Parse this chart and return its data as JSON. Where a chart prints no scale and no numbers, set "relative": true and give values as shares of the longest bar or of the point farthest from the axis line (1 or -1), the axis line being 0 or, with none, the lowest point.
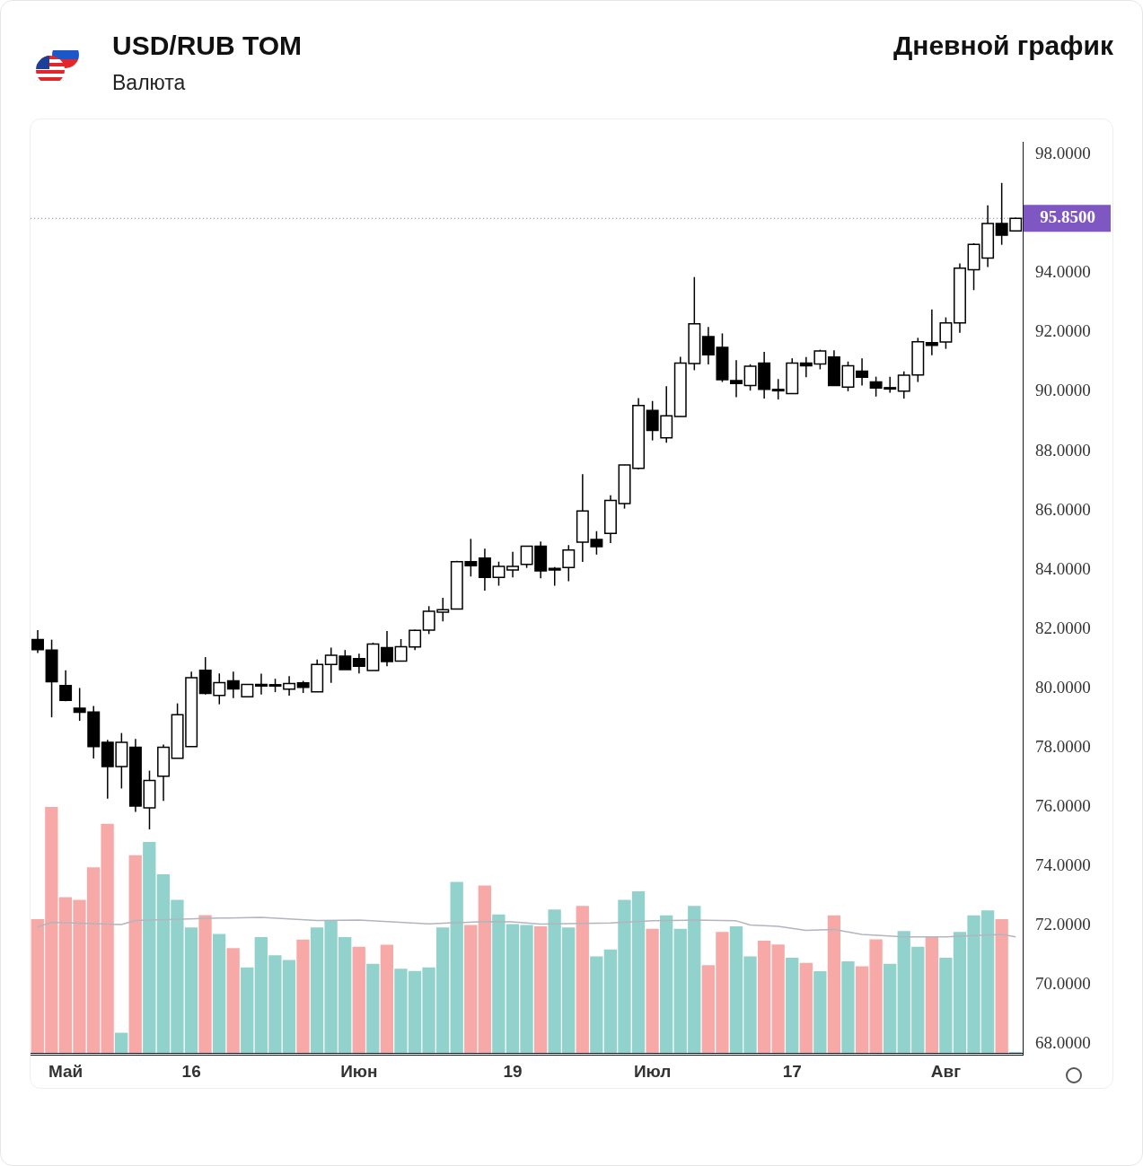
{
  "chart_data": [
    {
      "type": "candlestick",
      "title": "USD/RUB TOM",
      "subtitle": "Валюта",
      "annotations": [
        "Дневной график"
      ],
      "categories": [
        null,
        null,
        "Май",
        null,
        null,
        null,
        null,
        null,
        null,
        null,
        null,
        "16",
        null,
        null,
        null,
        null,
        null,
        null,
        null,
        null,
        null,
        null,
        null,
        "Июн",
        null,
        null,
        null,
        null,
        null,
        null,
        null,
        null,
        null,
        null,
        "19",
        null,
        null,
        null,
        null,
        null,
        null,
        null,
        null,
        null,
        "Июл",
        null,
        null,
        null,
        null,
        null,
        null,
        null,
        null,
        null,
        "17",
        null,
        null,
        null,
        null,
        null,
        null,
        null,
        null,
        null,
        null,
        "Авг",
        null,
        null,
        null,
        null,
        null
      ],
      "ohlc": [
        [
          81.64,
          81.96,
          81.19,
          81.3
        ],
        [
          81.29,
          81.64,
          79.02,
          80.22
        ],
        [
          80.09,
          80.61,
          79.56,
          79.59
        ],
        [
          79.33,
          80.01,
          78.9,
          79.19
        ],
        [
          79.2,
          79.4,
          77.63,
          78.03
        ],
        [
          78.18,
          78.26,
          76.28,
          77.36
        ],
        [
          77.36,
          78.49,
          76.62,
          78.18
        ],
        [
          78.01,
          78.29,
          75.83,
          76.03
        ],
        [
          75.97,
          77.22,
          75.24,
          76.89
        ],
        [
          77.03,
          78.1,
          76.2,
          78.01
        ],
        [
          77.64,
          79.49,
          77.64,
          79.11
        ],
        [
          78.03,
          80.56,
          78.03,
          80.36
        ],
        [
          80.61,
          81.05,
          79.79,
          79.83
        ],
        [
          79.76,
          80.5,
          79.46,
          80.19
        ],
        [
          80.25,
          80.56,
          79.67,
          79.98
        ],
        [
          79.71,
          80.13,
          79.71,
          80.13
        ],
        [
          80.13,
          80.49,
          79.79,
          80.08
        ],
        [
          80.12,
          80.32,
          79.87,
          80.11
        ],
        [
          79.97,
          80.41,
          79.75,
          80.16
        ],
        [
          80.18,
          80.25,
          79.84,
          80.03
        ],
        [
          79.88,
          80.97,
          79.88,
          80.8
        ],
        [
          80.8,
          81.37,
          80.18,
          81.11
        ],
        [
          81.08,
          81.29,
          80.63,
          80.63
        ],
        [
          81.0,
          81.17,
          80.5,
          80.74
        ],
        [
          80.6,
          81.54,
          80.6,
          81.49
        ],
        [
          81.37,
          81.93,
          80.74,
          80.9
        ],
        [
          80.92,
          81.66,
          80.92,
          81.4
        ],
        [
          81.39,
          81.98,
          81.29,
          81.95
        ],
        [
          81.96,
          82.77,
          81.83,
          82.6
        ],
        [
          82.57,
          83.05,
          82.26,
          82.65
        ],
        [
          82.67,
          84.3,
          82.67,
          84.27
        ],
        [
          84.27,
          85.04,
          83.77,
          84.13
        ],
        [
          84.39,
          84.71,
          83.29,
          83.74
        ],
        [
          83.74,
          84.27,
          83.46,
          84.11
        ],
        [
          83.99,
          84.6,
          83.74,
          84.11
        ],
        [
          84.18,
          84.8,
          84.06,
          84.79
        ],
        [
          84.79,
          84.95,
          83.71,
          83.96
        ],
        [
          84.04,
          84.09,
          83.46,
          83.99
        ],
        [
          84.07,
          84.83,
          83.61,
          84.66
        ],
        [
          84.93,
          87.22,
          84.26,
          85.98
        ],
        [
          85.02,
          85.3,
          84.51,
          84.78
        ],
        [
          85.22,
          86.51,
          84.9,
          86.34
        ],
        [
          86.23,
          87.54,
          86.06,
          87.53
        ],
        [
          87.42,
          89.79,
          87.38,
          89.54
        ],
        [
          89.37,
          89.69,
          88.36,
          88.7
        ],
        [
          88.45,
          90.19,
          88.28,
          89.19
        ],
        [
          89.17,
          91.18,
          89.17,
          90.97
        ],
        [
          90.95,
          93.87,
          90.73,
          92.29
        ],
        [
          91.86,
          92.19,
          90.92,
          91.25
        ],
        [
          91.5,
          91.97,
          90.33,
          90.41
        ],
        [
          90.38,
          91.07,
          89.82,
          90.28
        ],
        [
          90.21,
          90.93,
          90.04,
          90.86
        ],
        [
          90.97,
          91.35,
          89.77,
          90.08
        ],
        [
          90.08,
          90.43,
          89.74,
          90.05
        ],
        [
          89.94,
          91.13,
          89.94,
          90.97
        ],
        [
          90.97,
          91.17,
          90.49,
          90.88
        ],
        [
          90.94,
          91.42,
          90.76,
          91.38
        ],
        [
          91.17,
          91.4,
          90.21,
          90.21
        ],
        [
          90.16,
          91.02,
          90.02,
          90.88
        ],
        [
          90.7,
          91.13,
          90.21,
          90.49
        ],
        [
          90.33,
          90.51,
          89.84,
          90.13
        ],
        [
          90.13,
          90.51,
          89.97,
          90.14
        ],
        [
          90.02,
          90.69,
          89.77,
          90.56
        ],
        [
          90.57,
          91.82,
          90.33,
          91.69
        ],
        [
          91.66,
          92.78,
          91.23,
          91.57
        ],
        [
          91.68,
          92.51,
          91.45,
          92.32
        ],
        [
          92.32,
          94.33,
          91.99,
          94.17
        ],
        [
          94.12,
          95.01,
          93.43,
          94.97
        ],
        [
          94.51,
          96.29,
          94.21,
          95.68
        ],
        [
          95.68,
          97.05,
          94.96,
          95.28
        ],
        [
          95.43,
          95.87,
          95.43,
          95.85
        ]
      ],
      "ylim": [
        67.64,
        98.42
      ],
      "yticks": [
        {
          "value": 68,
          "label": "68.0000"
        },
        {
          "value": 70,
          "label": "70.0000"
        },
        {
          "value": 72,
          "label": "72.0000"
        },
        {
          "value": 74,
          "label": "74.0000"
        },
        {
          "value": 76,
          "label": "76.0000"
        },
        {
          "value": 78,
          "label": "78.0000"
        },
        {
          "value": 80,
          "label": "80.0000"
        },
        {
          "value": 82,
          "label": "82.0000"
        },
        {
          "value": 84,
          "label": "84.0000"
        },
        {
          "value": 86,
          "label": "86.0000"
        },
        {
          "value": 88,
          "label": "88.0000"
        },
        {
          "value": 90,
          "label": "90.0000"
        },
        {
          "value": 92,
          "label": "92.0000"
        },
        {
          "value": 94,
          "label": "94.0000"
        },
        {
          "value": 98,
          "label": "98.0000"
        }
      ],
      "ref_lines": [
        {
          "axis": "y",
          "value": 95.85,
          "label": "95.8500",
          "color": "#7e57c2",
          "line_style": "dotted"
        }
      ]
    },
    {
      "type": "bar",
      "relative": true,
      "tick_labels": false,
      "categories": [
        null,
        null,
        null,
        null,
        null,
        null,
        null,
        null,
        null,
        null,
        null,
        null,
        null,
        null,
        null,
        null,
        null,
        null,
        null,
        null,
        null,
        null,
        null,
        null,
        null,
        null,
        null,
        null,
        null,
        null,
        null,
        null,
        null,
        null,
        null,
        null,
        null,
        null,
        null,
        null,
        null,
        null,
        null,
        null,
        null,
        null,
        null,
        null,
        null,
        null,
        null,
        null,
        null,
        null,
        null,
        null,
        null,
        null,
        null,
        null,
        null,
        null,
        null,
        null,
        null,
        null,
        null,
        null,
        null,
        null,
        null
      ],
      "series": [
        {
          "type": "bar",
          "colors": [
            "#f7a9a7",
            "#f7a9a7",
            "#f7a9a7",
            "#f7a9a7",
            "#f7a9a7",
            "#f7a9a7",
            "#92d2cc",
            "#f7a9a7",
            "#92d2cc",
            "#92d2cc",
            "#92d2cc",
            "#92d2cc",
            "#f7a9a7",
            "#92d2cc",
            "#f7a9a7",
            "#92d2cc",
            "#92d2cc",
            "#92d2cc",
            "#92d2cc",
            "#f7a9a7",
            "#92d2cc",
            "#92d2cc",
            "#92d2cc",
            "#f7a9a7",
            "#92d2cc",
            "#f7a9a7",
            "#92d2cc",
            "#92d2cc",
            "#92d2cc",
            "#92d2cc",
            "#92d2cc",
            "#f7a9a7",
            "#f7a9a7",
            "#92d2cc",
            "#92d2cc",
            "#92d2cc",
            "#f7a9a7",
            "#92d2cc",
            "#92d2cc",
            "#f7a9a7",
            "#92d2cc",
            "#92d2cc",
            "#92d2cc",
            "#92d2cc",
            "#f7a9a7",
            "#92d2cc",
            "#92d2cc",
            "#92d2cc",
            "#f7a9a7",
            "#f7a9a7",
            "#92d2cc",
            "#92d2cc",
            "#f7a9a7",
            "#f7a9a7",
            "#92d2cc",
            "#f7a9a7",
            "#92d2cc",
            "#f7a9a7",
            "#92d2cc",
            "#f7a9a7",
            "#f7a9a7",
            "#92d2cc",
            "#92d2cc",
            "#92d2cc",
            "#f7a9a7",
            "#92d2cc",
            "#92d2cc",
            "#92d2cc",
            "#92d2cc",
            "#f7a9a7",
            "#92d2cc"
          ],
          "values": [
            0.544,
            1,
            0.633,
            0.622,
            0.755,
            0.932,
            0.082,
            0.804,
            0.858,
            0.726,
            0.622,
            0.51,
            0.56,
            0.484,
            0.426,
            0.348,
            0.471,
            0.397,
            0.378,
            0.461,
            0.51,
            0.539,
            0.471,
            0.432,
            0.362,
            0.44,
            0.342,
            0.333,
            0.348,
            0.51,
            0.695,
            0.52,
            0.681,
            0.563,
            0.524,
            0.52,
            0.515,
            0.583,
            0.51,
            0.598,
            0.392,
            0.421,
            0.622,
            0.657,
            0.505,
            0.559,
            0.505,
            0.598,
            0.357,
            0.492,
            0.515,
            0.392,
            0.456,
            0.441,
            0.387,
            0.366,
            0.332,
            0.559,
            0.372,
            0.352,
            0.462,
            0.362,
            0.495,
            0.432,
            0.472,
            0.387,
            0.492,
            0.559,
            0.579,
            0.544,
            0.004
          ]
        },
        {
          "type": "line",
          "color": "#b2b5be",
          "values": [
            0.512,
            0.531,
            null,
            null,
            null,
            null,
            0.522,
            0.538,
            null,
            null,
            null,
            null,
            null,
            0.548,
            null,
            null,
            0.551,
            null,
            null,
            null,
            0.538,
            null,
            null,
            0.54,
            null,
            null,
            null,
            null,
            0.525,
            null,
            null,
            null,
            0.534,
            null,
            0.533,
            null,
            0.524,
            null,
            null,
            null,
            null,
            0.528,
            null,
            null,
            0.537,
            null,
            null,
            0.54,
            null,
            null,
            0.537,
            0.52,
            null,
            0.515,
            null,
            0.498,
            null,
            0.502,
            null,
            0.482,
            null,
            null,
            0.472,
            null,
            null,
            0.472,
            null,
            null,
            null,
            0.482,
            0.472
          ]
        }
      ]
    }
  ]
}
